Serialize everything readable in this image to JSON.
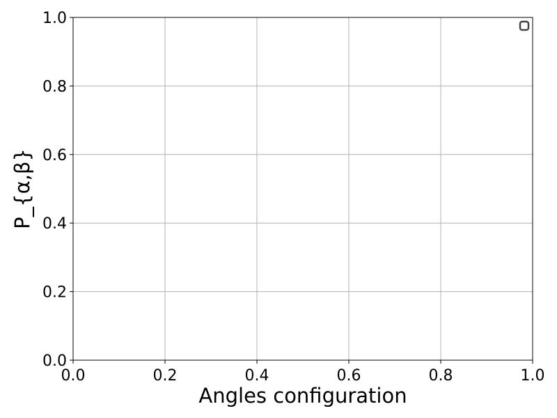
{
  "chart_data": {
    "type": "scatter",
    "title": "",
    "xlabel": "Angles configuration",
    "ylabel": "P_{α,β}",
    "xlim": [
      0.0,
      1.0
    ],
    "ylim": [
      0.0,
      1.0
    ],
    "x_ticks": [
      "0.0",
      "0.2",
      "0.4",
      "0.6",
      "0.8",
      "1.0"
    ],
    "y_ticks": [
      "0.0",
      "0.2",
      "0.4",
      "0.6",
      "0.8",
      "1.0"
    ],
    "grid": true,
    "legend": "upper-right",
    "legend_color": "#444444",
    "series": []
  }
}
